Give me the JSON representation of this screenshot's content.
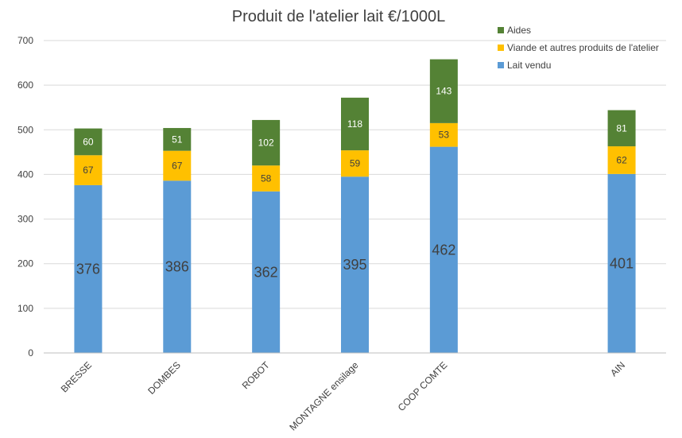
{
  "chart_data": {
    "type": "bar",
    "stacked": true,
    "title": "Produit de l'atelier lait €/1000L",
    "xlabel": "",
    "ylabel": "",
    "ylim": [
      0,
      700
    ],
    "yticks": [
      0,
      100,
      200,
      300,
      400,
      500,
      600,
      700
    ],
    "grid": true,
    "legend_position": "top-right",
    "categories": [
      "BRESSE",
      "DOMBES",
      "ROBOT",
      "MONTAGNE ensilage",
      "COOP COMTE",
      "",
      "AIN"
    ],
    "series": [
      {
        "name": "Lait vendu",
        "color": "#5b9bd5",
        "label_color": "#404040",
        "values": [
          376,
          386,
          362,
          395,
          462,
          null,
          401
        ]
      },
      {
        "name": "Viande et autres produits de l'atelier",
        "color": "#ffc000",
        "label_color": "#404040",
        "values": [
          67,
          67,
          58,
          59,
          53,
          null,
          62
        ]
      },
      {
        "name": "Aides",
        "color": "#548235",
        "label_color": "#ffffff",
        "values": [
          60,
          51,
          102,
          118,
          143,
          null,
          81
        ]
      }
    ],
    "legend_order": [
      "Aides",
      "Viande et autres produits de l'atelier",
      "Lait vendu"
    ]
  }
}
